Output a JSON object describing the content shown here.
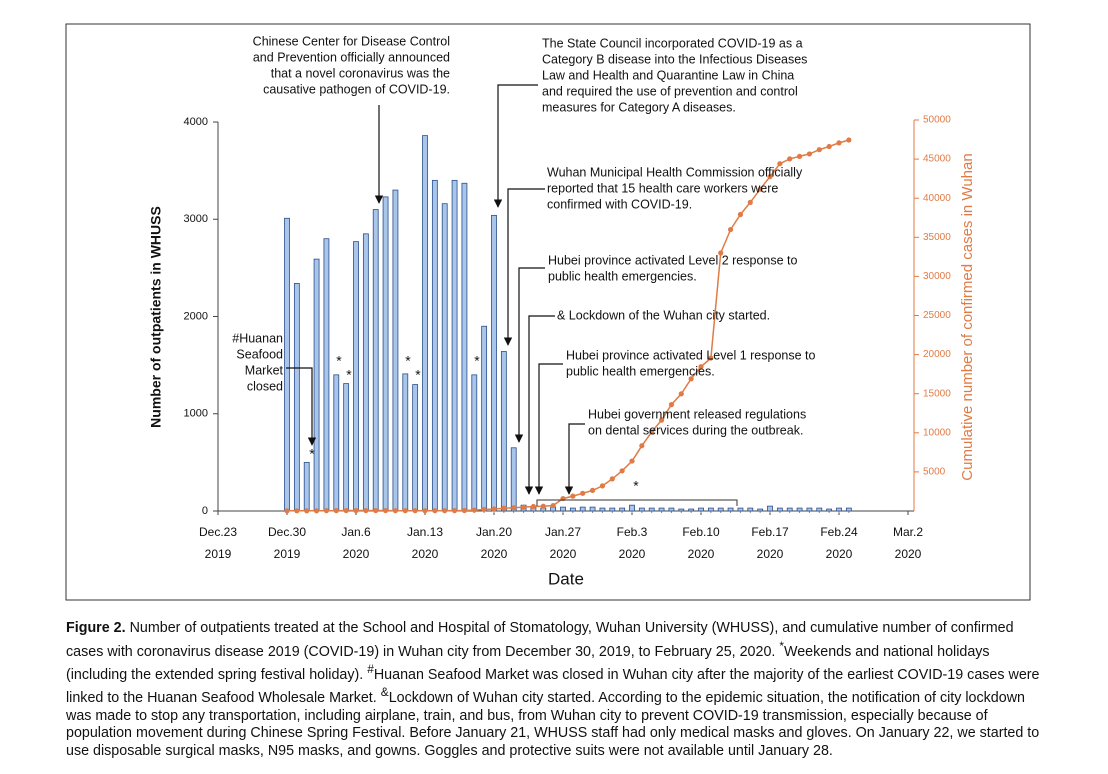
{
  "chart_data": {
    "type": "bar",
    "x_label": "Date",
    "y_label": "Number of outpatients in WHUSS",
    "y2_label": "Cumulative number of confirmed cases in Wuhan",
    "x": [
      "2019-12-30",
      "2019-12-31",
      "2020-01-01",
      "2020-01-02",
      "2020-01-03",
      "2020-01-04",
      "2020-01-05",
      "2020-01-06",
      "2020-01-07",
      "2020-01-08",
      "2020-01-09",
      "2020-01-10",
      "2020-01-11",
      "2020-01-12",
      "2020-01-13",
      "2020-01-14",
      "2020-01-15",
      "2020-01-16",
      "2020-01-17",
      "2020-01-18",
      "2020-01-19",
      "2020-01-20",
      "2020-01-21",
      "2020-01-22",
      "2020-01-23",
      "2020-01-24",
      "2020-01-25",
      "2020-01-26",
      "2020-01-27",
      "2020-01-28",
      "2020-01-29",
      "2020-01-30",
      "2020-01-31",
      "2020-02-01",
      "2020-02-02",
      "2020-02-03",
      "2020-02-04",
      "2020-02-05",
      "2020-02-06",
      "2020-02-07",
      "2020-02-08",
      "2020-02-09",
      "2020-02-10",
      "2020-02-11",
      "2020-02-12",
      "2020-02-13",
      "2020-02-14",
      "2020-02-15",
      "2020-02-16",
      "2020-02-17",
      "2020-02-18",
      "2020-02-19",
      "2020-02-20",
      "2020-02-21",
      "2020-02-22",
      "2020-02-23",
      "2020-02-24",
      "2020-02-25"
    ],
    "series": [
      {
        "type": "bar",
        "axis": "y",
        "color": "#a9c5ea",
        "edge_color": "#2b4f8a",
        "values": [
          3010,
          2340,
          500,
          2590,
          2800,
          1400,
          1310,
          2770,
          2850,
          3100,
          3230,
          3300,
          1410,
          1300,
          3860,
          3400,
          3160,
          3400,
          3370,
          1400,
          1900,
          3040,
          1640,
          650,
          60,
          40,
          30,
          40,
          40,
          30,
          40,
          40,
          30,
          30,
          30,
          60,
          30,
          30,
          30,
          30,
          20,
          20,
          30,
          30,
          30,
          30,
          30,
          30,
          20,
          50,
          30,
          30,
          30,
          30,
          30,
          20,
          30,
          30
        ]
      },
      {
        "type": "line",
        "axis": "y2",
        "color": "#e07b45",
        "values": [
          27,
          27,
          27,
          27,
          44,
          44,
          59,
          59,
          59,
          59,
          59,
          41,
          41,
          41,
          41,
          41,
          41,
          45,
          62,
          121,
          198,
          258,
          363,
          425,
          495,
          572,
          618,
          698,
          1590,
          1905,
          2261,
          2639,
          3215,
          4109,
          5142,
          6384,
          8351,
          10117,
          11618,
          13603,
          14982,
          16902,
          18454,
          19558,
          32994,
          35991,
          37914,
          39462,
          41152,
          42752,
          44412,
          45027,
          45346,
          45660,
          46201,
          46607,
          47071,
          47441
        ]
      }
    ],
    "xlim": [
      "2019-12-23",
      "2020-03-02"
    ],
    "xticks": [
      {
        "value": "2019-12-23",
        "label": "Dec.23 2019"
      },
      {
        "value": "2019-12-30",
        "label": "Dec.30 2019"
      },
      {
        "value": "2020-01-06",
        "label": "Jan.6 2020"
      },
      {
        "value": "2020-01-13",
        "label": "Jan.13 2020"
      },
      {
        "value": "2020-01-20",
        "label": "Jan.20 2020"
      },
      {
        "value": "2020-01-27",
        "label": "Jan.27 2020"
      },
      {
        "value": "2020-02-03",
        "label": "Feb.3 2020"
      },
      {
        "value": "2020-02-10",
        "label": "Feb.10 2020"
      },
      {
        "value": "2020-02-17",
        "label": "Feb.17 2020"
      },
      {
        "value": "2020-02-24",
        "label": "Feb.24 2020"
      },
      {
        "value": "2020-03-02",
        "label": "Mar.2 2020"
      }
    ],
    "ylim": [
      0,
      4000
    ],
    "yticks": [
      0,
      1000,
      2000,
      3000,
      4000
    ],
    "y2lim": [
      0,
      50000
    ],
    "y2ticks": [
      5000,
      10000,
      15000,
      20000,
      25000,
      30000,
      35000,
      40000,
      45000,
      50000
    ],
    "annotations": [
      {
        "lines": [
          "Chinese Center for Disease Control",
          "and Prevention officially announced",
          "that a novel coronavirus was the",
          "causative pathogen of COVID-19."
        ]
      },
      {
        "lines": [
          "The State Council incorporated COVID-19 as a",
          "Category B disease into the Infectious Diseases",
          "Law and Health and Quarantine Law in China",
          "and required the use of prevention and control",
          "measures for Category A diseases."
        ]
      },
      {
        "lines": [
          "Wuhan Municipal Health Commission officially",
          "reported that 15 health care workers were",
          "confirmed with COVID-19."
        ]
      },
      {
        "lines": [
          "Hubei province activated Level 2 response to",
          "public health emergencies."
        ]
      },
      {
        "lines": [
          "& Lockdown of the Wuhan city started."
        ]
      },
      {
        "lines": [
          "Hubei province activated Level 1 response to",
          "public health emergencies."
        ]
      },
      {
        "lines": [
          "Hubei government released regulations",
          "on dental services during the outbreak."
        ]
      },
      {
        "lines": [
          "#Huanan",
          "Seafood",
          "Market",
          "closed"
        ]
      }
    ],
    "markers": [
      "*",
      "*",
      "*",
      "*",
      "*",
      "*",
      "*"
    ]
  },
  "caption": {
    "label": "Figure 2.",
    "segments": [
      "Number of outpatients treated at the School and Hospital of Stomatology, Wuhan University (WHUSS), and cumulative number of confirmed cases with coronavirus disease 2019 (COVID-19) in Wuhan city from December 30, 2019, to February 25, 2020. ",
      "*",
      "Weekends and national holidays (including the extended spring festival holiday). ",
      "#",
      "Huanan Seafood Market was closed in Wuhan city after the majority of the earliest COVID-19 cases were linked to the Huanan Seafood Wholesale Market. ",
      "&",
      "Lockdown of Wuhan city started. According to the epidemic situation, the notification of city lockdown was made to stop any transportation, including airplane, train, and bus, from Wuhan city to prevent COVID-19 transmission, especially because of population movement during Chinese Spring Festival. Before January 21, WHUSS staff had only medical masks and gloves. On January 22, we started to use disposable surgical masks, N95 masks, and gowns. Goggles and protective suits were not available until January 28."
    ]
  }
}
